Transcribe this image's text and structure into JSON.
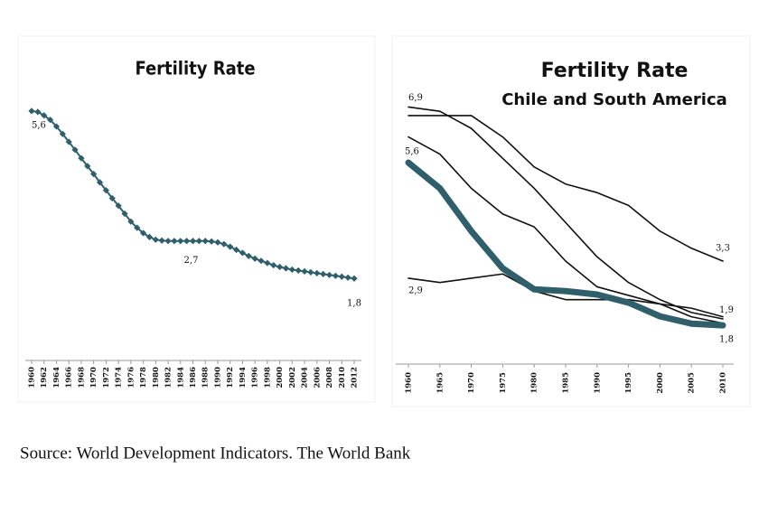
{
  "chart_data": [
    {
      "type": "line",
      "title": "Fertility Rate",
      "color": "#2f5f6a",
      "markers": "diamond",
      "x": [
        1960,
        1961,
        1962,
        1963,
        1964,
        1965,
        1966,
        1967,
        1968,
        1969,
        1970,
        1971,
        1972,
        1973,
        1974,
        1975,
        1976,
        1977,
        1978,
        1979,
        1980,
        1981,
        1982,
        1983,
        1984,
        1985,
        1986,
        1987,
        1988,
        1989,
        1990,
        1991,
        1992,
        1993,
        1994,
        1995,
        1996,
        1997,
        1998,
        1999,
        2000,
        2001,
        2002,
        2003,
        2004,
        2005,
        2006,
        2007,
        2008,
        2009,
        2010,
        2011,
        2012
      ],
      "values": [
        5.6,
        5.58,
        5.5,
        5.4,
        5.25,
        5.08,
        4.9,
        4.72,
        4.53,
        4.35,
        4.17,
        3.98,
        3.8,
        3.62,
        3.45,
        3.27,
        3.09,
        2.95,
        2.83,
        2.74,
        2.68,
        2.66,
        2.65,
        2.65,
        2.65,
        2.65,
        2.65,
        2.65,
        2.65,
        2.64,
        2.62,
        2.58,
        2.52,
        2.45,
        2.38,
        2.31,
        2.25,
        2.2,
        2.15,
        2.1,
        2.06,
        2.03,
        2.0,
        1.98,
        1.96,
        1.94,
        1.92,
        1.9,
        1.88,
        1.86,
        1.84,
        1.82,
        1.8
      ],
      "xlim": [
        1960,
        2012
      ],
      "xticks": [
        1960,
        1962,
        1964,
        1966,
        1968,
        1970,
        1972,
        1974,
        1976,
        1978,
        1980,
        1982,
        1984,
        1986,
        1988,
        1990,
        1992,
        1994,
        1996,
        1998,
        2000,
        2002,
        2004,
        2006,
        2008,
        2010,
        2012
      ],
      "ylim": [
        0,
        6.5
      ],
      "annotations": [
        {
          "text": "5,6",
          "x": 1960,
          "value": 5.6
        },
        {
          "text": "2,7",
          "x": 1986,
          "value": 2.7
        },
        {
          "text": "1,8",
          "x": 2012,
          "value": 1.8
        }
      ]
    },
    {
      "type": "line",
      "title": "Fertility Rate",
      "subtitle": "Chile and South America",
      "x": [
        1960,
        1965,
        1970,
        1975,
        1980,
        1985,
        1990,
        1995,
        2000,
        2005,
        2010
      ],
      "xlim": [
        1960,
        2010
      ],
      "xticks": [
        1960,
        1965,
        1970,
        1975,
        1980,
        1985,
        1990,
        1995,
        2000,
        2005,
        2010
      ],
      "ylim": [
        1,
        7.5
      ],
      "series": [
        {
          "color": "#111111",
          "line_width": 1.6,
          "values": [
            6.9,
            6.8,
            6.4,
            5.7,
            5.0,
            4.2,
            3.4,
            2.8,
            2.4,
            2.1,
            1.95
          ]
        },
        {
          "color": "#111111",
          "line_width": 1.6,
          "values": [
            6.7,
            6.7,
            6.7,
            6.2,
            5.5,
            5.1,
            4.9,
            4.6,
            4.0,
            3.6,
            3.3
          ]
        },
        {
          "color": "#111111",
          "line_width": 1.6,
          "values": [
            6.2,
            5.8,
            5.0,
            4.4,
            4.1,
            3.3,
            2.7,
            2.5,
            2.3,
            2.2,
            2.0
          ]
        },
        {
          "color": "#111111",
          "line_width": 1.6,
          "values": [
            2.9,
            2.8,
            2.9,
            3.0,
            2.6,
            2.4,
            2.4,
            2.4,
            2.3,
            2.0,
            1.85
          ]
        },
        {
          "color": "#2f5f6a",
          "line_width": 7,
          "values": [
            5.6,
            5.0,
            4.0,
            3.13,
            2.64,
            2.6,
            2.52,
            2.33,
            2.01,
            1.84,
            1.8
          ]
        }
      ],
      "annotations": [
        {
          "text": "6,9",
          "x": 1960,
          "value": 6.9
        },
        {
          "text": "5,6",
          "x": 1960,
          "value": 5.6
        },
        {
          "text": "2,9",
          "x": 1960,
          "value": 2.9
        },
        {
          "text": "3,3",
          "x": 2010,
          "value": 3.3
        },
        {
          "text": "1,9",
          "x": 2010,
          "value": 1.9
        },
        {
          "text": "1,8",
          "x": 2010,
          "value": 1.8
        }
      ]
    }
  ],
  "source": "Source: World Development Indicators. The World Bank"
}
